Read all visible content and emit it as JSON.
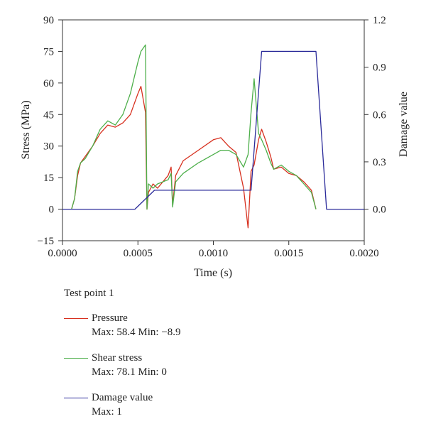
{
  "chart_data": {
    "type": "line",
    "xlabel": "Time (s)",
    "ylabel_left": "Stress (MPa)",
    "ylabel_right": "Damage value",
    "xlim": [
      0,
      0.002
    ],
    "ylim_left": [
      -15,
      90
    ],
    "ylim_right": [
      -0.2,
      1.2
    ],
    "x_ticks": [
      "0.0000",
      "0.0005",
      "0.0010",
      "0.0015",
      "0.0020"
    ],
    "y_ticks_left": [
      "−15",
      "0",
      "15",
      "30",
      "45",
      "60",
      "75",
      "90"
    ],
    "y_ticks_right": [
      "0.0",
      "0.3",
      "0.6",
      "0.9",
      "1.2"
    ],
    "grid": false,
    "series": [
      {
        "name": "Pressure",
        "axis": "left",
        "color": "#d7301f",
        "x": [
          6e-05,
          8e-05,
          0.0001,
          0.00012,
          0.00015,
          0.0002,
          0.00025,
          0.0003,
          0.00035,
          0.0004,
          0.00045,
          0.0005,
          0.00052,
          0.00055,
          0.00056,
          0.00057,
          0.0006,
          0.00063,
          0.0007,
          0.00072,
          0.00073,
          0.00075,
          0.0008,
          0.0009,
          0.001,
          0.00105,
          0.0011,
          0.00115,
          0.0012,
          0.00123,
          0.00125,
          0.00127,
          0.0013,
          0.00132,
          0.00135,
          0.00138,
          0.0014,
          0.00145,
          0.0015,
          0.00155,
          0.0016,
          0.00165,
          0.00168
        ],
        "y": [
          0,
          5,
          16,
          22,
          25,
          30,
          36,
          40,
          39,
          41,
          45,
          55,
          58.4,
          46,
          0,
          8,
          12,
          10,
          16,
          20,
          2,
          16,
          23,
          28,
          33,
          34,
          30,
          27,
          10,
          -8.9,
          18,
          21,
          33,
          38,
          32,
          25,
          19,
          20,
          17,
          16,
          13,
          9,
          0
        ]
      },
      {
        "name": "Shear stress",
        "axis": "left",
        "color": "#4daf4a",
        "x": [
          6e-05,
          8e-05,
          0.0001,
          0.00012,
          0.00015,
          0.0002,
          0.00025,
          0.0003,
          0.00035,
          0.0004,
          0.00045,
          0.0005,
          0.00052,
          0.00055,
          0.00056,
          0.00057,
          0.0006,
          0.00063,
          0.0007,
          0.00072,
          0.00073,
          0.00075,
          0.0008,
          0.0009,
          0.001,
          0.00105,
          0.0011,
          0.00115,
          0.0012,
          0.00123,
          0.00125,
          0.00127,
          0.0013,
          0.00132,
          0.00135,
          0.00138,
          0.0014,
          0.00145,
          0.0015,
          0.00155,
          0.0016,
          0.00165,
          0.00168
        ],
        "y": [
          0,
          5,
          18,
          22,
          24,
          30,
          38,
          42,
          40,
          45,
          55,
          70,
          75,
          78.1,
          0,
          12,
          10,
          12,
          14,
          17,
          1,
          13,
          17,
          22,
          26,
          28,
          28,
          26,
          20,
          26,
          46,
          62,
          36,
          33,
          28,
          22,
          19,
          21,
          18,
          16,
          12,
          8,
          0
        ]
      },
      {
        "name": "Damage value",
        "axis": "right",
        "color": "#2b2b9a",
        "x": [
          0,
          0.00048,
          0.00061,
          0.00125,
          0.00132,
          0.00168,
          0.00175,
          0.002
        ],
        "y": [
          0,
          0,
          0.12,
          0.12,
          1,
          1,
          0,
          0
        ]
      }
    ]
  },
  "legend": {
    "title": "Test point 1",
    "items": [
      {
        "label": "Pressure",
        "stats": "Max: 58.4  Min: −8.9",
        "color": "#d7301f"
      },
      {
        "label": "Shear stress",
        "stats": "Max: 78.1  Min: 0",
        "color": "#4daf4a"
      },
      {
        "label": "Damage value",
        "stats": "Max: 1",
        "color": "#2b2b9a"
      }
    ]
  }
}
